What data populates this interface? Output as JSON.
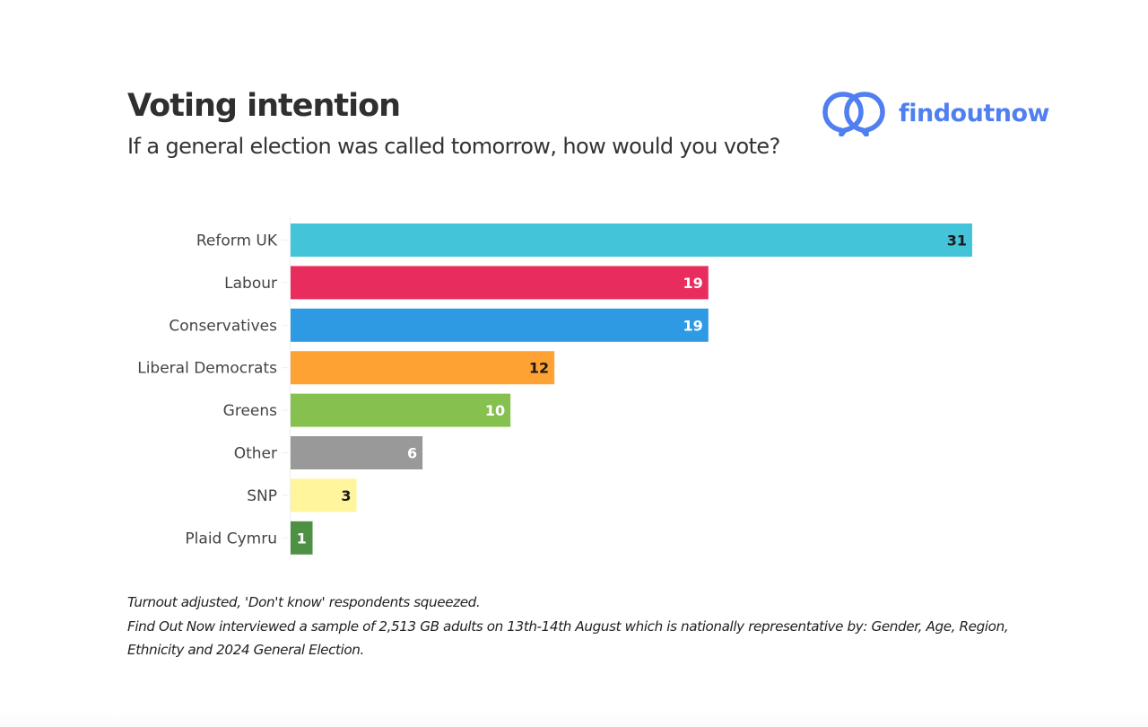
{
  "header": {
    "title": "Voting intention",
    "subtitle": "If a general election was called tomorrow, how would you vote?"
  },
  "logo": {
    "icon": "speech-bubbles-rings-icon",
    "text": "findoutnow",
    "color": "#4f7ff0"
  },
  "chart_data": {
    "type": "bar",
    "orientation": "horizontal",
    "title": "Voting intention",
    "subtitle": "If a general election was called tomorrow, how would you vote?",
    "xlabel": "",
    "ylabel": "",
    "xlim": [
      0,
      31
    ],
    "grid": false,
    "legend": "none",
    "categories": [
      "Reform UK",
      "Labour",
      "Conservatives",
      "Liberal Democrats",
      "Greens",
      "Other",
      "SNP",
      "Plaid Cymru"
    ],
    "values": [
      31,
      19,
      19,
      12,
      10,
      6,
      3,
      1
    ],
    "data_labels": [
      "31",
      "19",
      "19",
      "12",
      "10",
      "6",
      "3",
      "1"
    ],
    "colors": [
      "#43c4d9",
      "#e82d5e",
      "#2e9ae3",
      "#ffa234",
      "#86c04f",
      "#999999",
      "#fff59d",
      "#4f9144"
    ],
    "label_colors": [
      "#1a1a1a",
      "#ffffff",
      "#ffffff",
      "#1a1a1a",
      "#ffffff",
      "#ffffff",
      "#1a1a1a",
      "#ffffff"
    ],
    "unit": "%"
  },
  "footnote": {
    "line1": "Turnout adjusted, 'Don't know' respondents squeezed.",
    "line2": "Find Out Now interviewed a sample of 2,513 GB adults on 13th-14th August which is nationally representative by: Gender, Age, Region, Ethnicity and 2024 General Election."
  }
}
